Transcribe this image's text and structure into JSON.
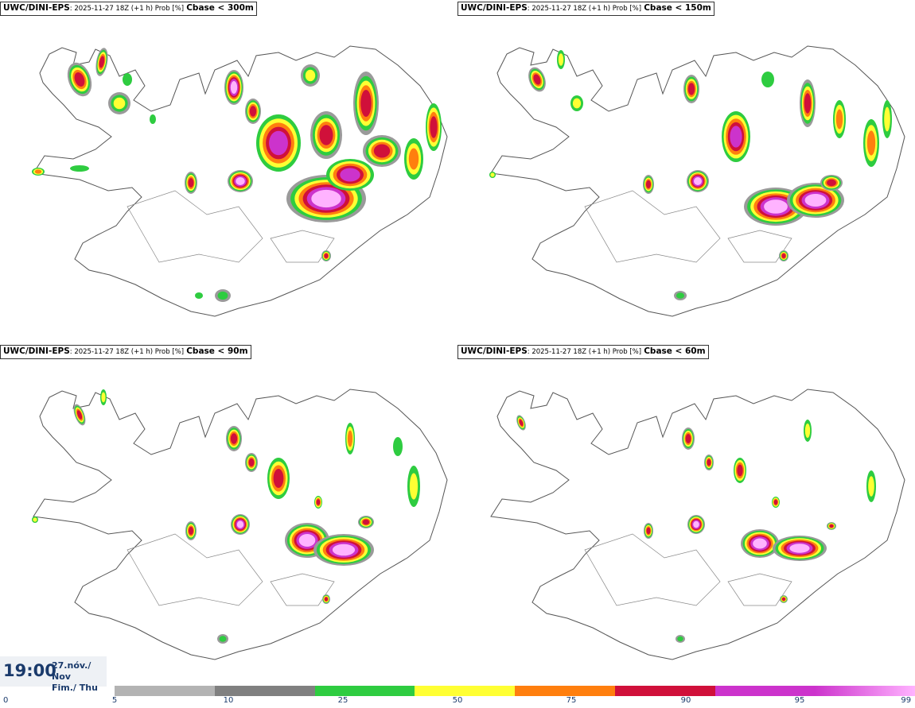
{
  "panels": [
    {
      "source": "UWC/DINI-EPS",
      "meta": ": 2025-11-27 18Z (+1 h) Prob [%]",
      "label": "Cbase < 300m"
    },
    {
      "source": "UWC/DINI-EPS",
      "meta": ": 2025-11-27 18Z (+1 h) Prob [%]",
      "label": "Cbase < 150m"
    },
    {
      "source": "UWC/DINI-EPS",
      "meta": ": 2025-11-27 18Z (+1 h) Prob [%]",
      "label": "Cbase < 90m"
    },
    {
      "source": "UWC/DINI-EPS",
      "meta": ": 2025-11-27 18Z (+1 h) Prob [%]",
      "label": "Cbase < 60m"
    }
  ],
  "valid_time": {
    "time": "19:00",
    "date": "27.nóv./ Nov",
    "day": "Fim./ Thu"
  },
  "legend": {
    "ticks": [
      "0",
      "5",
      "10",
      "25",
      "50",
      "75",
      "90",
      "95",
      "99"
    ],
    "colors": [
      "#b3b3b3",
      "#808080",
      "#2ecc40",
      "#ffff33",
      "#ff7f0e",
      "#d0103a",
      "#cc33cc",
      "#ffb3ff"
    ]
  }
}
